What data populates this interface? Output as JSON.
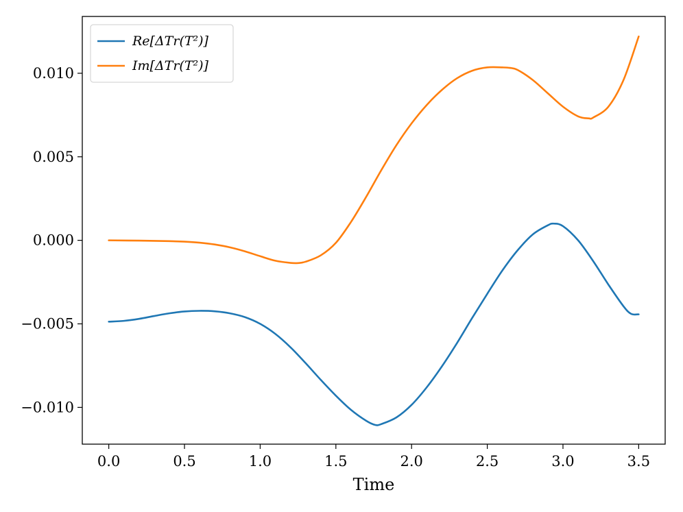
{
  "chart_data": {
    "type": "line",
    "xlabel": "Time",
    "ylabel": "",
    "xlim": [
      -0.175,
      3.675
    ],
    "ylim": [
      -0.0122,
      0.0134
    ],
    "xticks": [
      0.0,
      0.5,
      1.0,
      1.5,
      2.0,
      2.5,
      3.0,
      3.5
    ],
    "xtick_labels": [
      "0.0",
      "0.5",
      "1.0",
      "1.5",
      "2.0",
      "2.5",
      "3.0",
      "3.5"
    ],
    "yticks": [
      -0.01,
      -0.005,
      0.0,
      0.005,
      0.01
    ],
    "ytick_labels": [
      "−0.010",
      "−0.005",
      "0.000",
      "0.005",
      "0.010"
    ],
    "grid": false,
    "legend_position": "top-left",
    "series": [
      {
        "name": "Re[ΔTr(T²)]",
        "color": "#1f77b4",
        "x": [
          0.0,
          0.1,
          0.2,
          0.3,
          0.4,
          0.5,
          0.6,
          0.7,
          0.8,
          0.9,
          1.0,
          1.1,
          1.2,
          1.3,
          1.4,
          1.5,
          1.6,
          1.7,
          1.76,
          1.8,
          1.9,
          2.0,
          2.1,
          2.2,
          2.3,
          2.4,
          2.5,
          2.6,
          2.7,
          2.8,
          2.9,
          2.94,
          3.0,
          3.1,
          3.2,
          3.3,
          3.4,
          3.45,
          3.5
        ],
        "y": [
          -0.00487,
          -0.00482,
          -0.0047,
          -0.00453,
          -0.00437,
          -0.00426,
          -0.00422,
          -0.00425,
          -0.00437,
          -0.0046,
          -0.005,
          -0.0056,
          -0.0064,
          -0.00735,
          -0.00835,
          -0.0093,
          -0.01015,
          -0.0108,
          -0.01105,
          -0.011,
          -0.0106,
          -0.00985,
          -0.0088,
          -0.00755,
          -0.00615,
          -0.00465,
          -0.0032,
          -0.0018,
          -0.0006,
          0.00035,
          0.0009,
          0.001,
          0.00085,
          0.0,
          -0.00125,
          -0.00265,
          -0.00395,
          -0.0044,
          -0.00443
        ]
      },
      {
        "name": "Im[ΔTr(T²)]",
        "color": "#ff7f0e",
        "x": [
          0.0,
          0.2,
          0.4,
          0.5,
          0.6,
          0.7,
          0.8,
          0.9,
          1.0,
          1.1,
          1.2,
          1.25,
          1.3,
          1.4,
          1.5,
          1.6,
          1.7,
          1.8,
          1.9,
          2.0,
          2.1,
          2.2,
          2.3,
          2.4,
          2.5,
          2.6,
          2.65,
          2.7,
          2.8,
          2.9,
          3.0,
          3.1,
          3.17,
          3.2,
          3.3,
          3.4,
          3.5
        ],
        "y": [
          0.0,
          -2e-05,
          -5e-05,
          -8e-05,
          -0.00014,
          -0.00025,
          -0.00042,
          -0.00066,
          -0.00095,
          -0.00122,
          -0.00135,
          -0.00136,
          -0.00128,
          -0.0009,
          -0.00015,
          0.0011,
          0.0026,
          0.0042,
          0.0057,
          0.007,
          0.0081,
          0.009,
          0.0097,
          0.01015,
          0.01035,
          0.01035,
          0.01032,
          0.0102,
          0.0096,
          0.0088,
          0.008,
          0.00742,
          0.0073,
          0.00735,
          0.008,
          0.0096,
          0.0122
        ]
      }
    ]
  }
}
